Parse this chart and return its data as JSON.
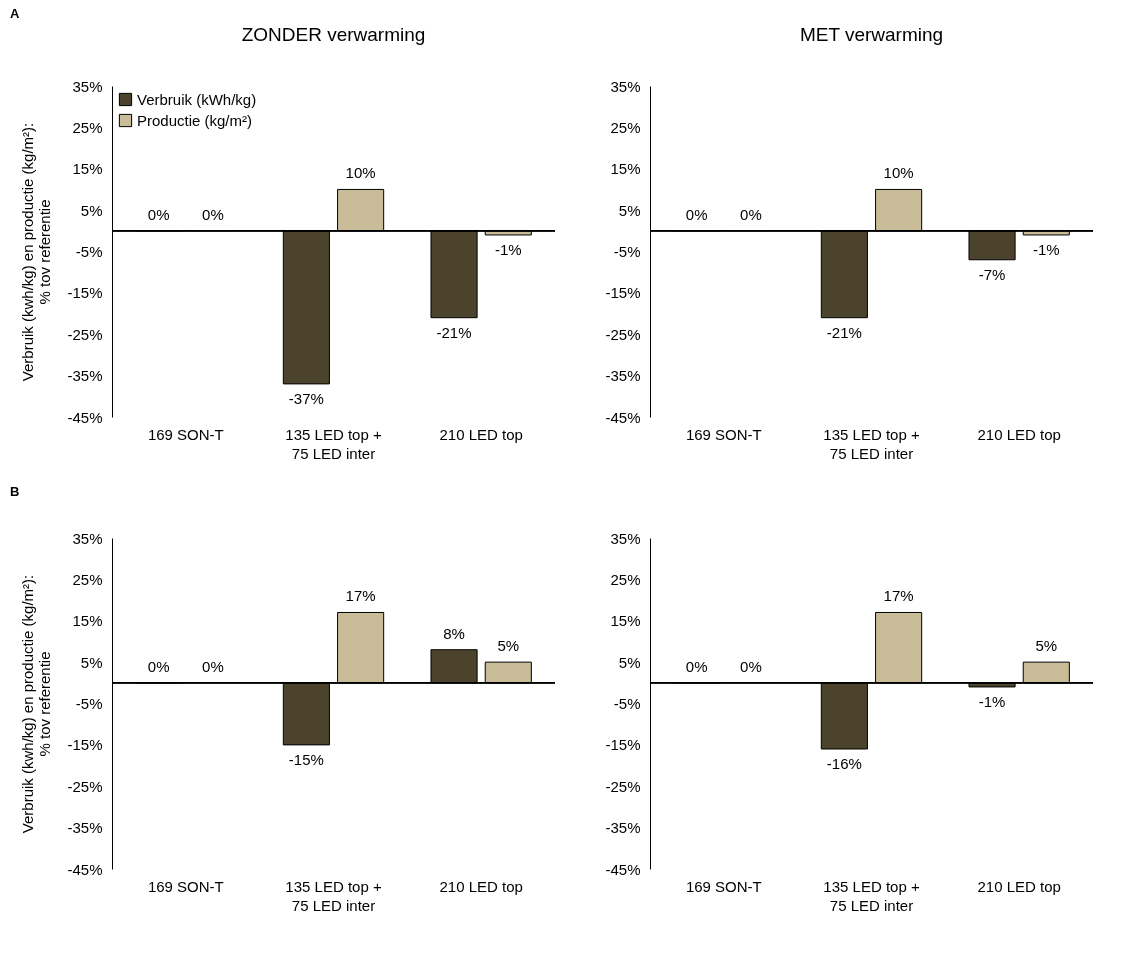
{
  "chart_data": [
    {
      "type": "bar",
      "title": "ZONDER verwarming",
      "ylabel": "Verbruik (kwh/kg) en productie (kg/m²):\n% tov referentie",
      "annotations": [
        "A"
      ],
      "categories": [
        "169 SON-T",
        "135 LED top +\n75 LED inter",
        "210 LED top"
      ],
      "legend": "top left",
      "series": [
        {
          "name": "Verbruik (kWh/kg)",
          "color": "#4b432b",
          "values": [
            0,
            -37,
            -21
          ],
          "value_labels": [
            "0%",
            "-37%",
            "-21%"
          ]
        },
        {
          "name": "Productie (kg/m²)",
          "color": "#c8bd98",
          "values": [
            0,
            10,
            -1
          ],
          "value_labels": [
            "0%",
            "10%",
            "-1%"
          ]
        }
      ],
      "ylim": [
        -45,
        35
      ],
      "yticks": [
        {
          "value": 35,
          "label": "35%"
        },
        {
          "value": 25,
          "label": "25%"
        },
        {
          "value": 15,
          "label": "15%"
        },
        {
          "value": 5,
          "label": "5%"
        },
        {
          "value": -5,
          "label": "-5%"
        },
        {
          "value": -15,
          "label": "-15%"
        },
        {
          "value": -25,
          "label": "-25%"
        },
        {
          "value": -35,
          "label": "-35%"
        },
        {
          "value": -45,
          "label": "-45%"
        }
      ]
    },
    {
      "type": "bar",
      "title": "MET verwarming",
      "categories": [
        "169 SON-T",
        "135 LED top +\n75 LED inter",
        "210 LED top"
      ],
      "series": [
        {
          "color": "#4b432b",
          "values": [
            0,
            -21,
            -7
          ],
          "value_labels": [
            "0%",
            "-21%",
            "-7%"
          ]
        },
        {
          "color": "#c8bd98",
          "values": [
            0,
            10,
            -1
          ],
          "value_labels": [
            "0%",
            "10%",
            "-1%"
          ]
        }
      ],
      "ylim": [
        -45,
        35
      ],
      "yticks": [
        {
          "value": 35,
          "label": "35%"
        },
        {
          "value": 25,
          "label": "25%"
        },
        {
          "value": 15,
          "label": "15%"
        },
        {
          "value": 5,
          "label": "5%"
        },
        {
          "value": -5,
          "label": "-5%"
        },
        {
          "value": -15,
          "label": "-15%"
        },
        {
          "value": -25,
          "label": "-25%"
        },
        {
          "value": -35,
          "label": "-35%"
        },
        {
          "value": -45,
          "label": "-45%"
        }
      ]
    },
    {
      "type": "bar",
      "ylabel": "Verbruik (kwh/kg) en productie (kg/m²):\n% tov referentie",
      "annotations": [
        "B"
      ],
      "categories": [
        "169 SON-T",
        "135 LED top +\n75 LED inter",
        "210 LED top"
      ],
      "series": [
        {
          "color": "#4b432b",
          "values": [
            0,
            -15,
            8
          ],
          "value_labels": [
            "0%",
            "-15%",
            "8%"
          ]
        },
        {
          "color": "#c8bd98",
          "values": [
            0,
            17,
            5
          ],
          "value_labels": [
            "0%",
            "17%",
            "5%"
          ]
        }
      ],
      "ylim": [
        -45,
        35
      ],
      "yticks": [
        {
          "value": 35,
          "label": "35%"
        },
        {
          "value": 25,
          "label": "25%"
        },
        {
          "value": 15,
          "label": "15%"
        },
        {
          "value": 5,
          "label": "5%"
        },
        {
          "value": -5,
          "label": "-5%"
        },
        {
          "value": -15,
          "label": "-15%"
        },
        {
          "value": -25,
          "label": "-25%"
        },
        {
          "value": -35,
          "label": "-35%"
        },
        {
          "value": -45,
          "label": "-45%"
        }
      ]
    },
    {
      "type": "bar",
      "categories": [
        "169 SON-T",
        "135 LED top +\n75 LED inter",
        "210 LED top"
      ],
      "series": [
        {
          "color": "#4b432b",
          "values": [
            0,
            -16,
            -1
          ],
          "value_labels": [
            "0%",
            "-16%",
            "-1%"
          ]
        },
        {
          "color": "#c8bd98",
          "values": [
            0,
            17,
            5
          ],
          "value_labels": [
            "0%",
            "17%",
            "5%"
          ]
        }
      ],
      "ylim": [
        -45,
        35
      ],
      "yticks": [
        {
          "value": 35,
          "label": "35%"
        },
        {
          "value": 25,
          "label": "25%"
        },
        {
          "value": 15,
          "label": "15%"
        },
        {
          "value": 5,
          "label": "5%"
        },
        {
          "value": -5,
          "label": "-5%"
        },
        {
          "value": -15,
          "label": "-15%"
        },
        {
          "value": -25,
          "label": "-25%"
        },
        {
          "value": -35,
          "label": "-35%"
        },
        {
          "value": -45,
          "label": "-45%"
        }
      ]
    }
  ]
}
